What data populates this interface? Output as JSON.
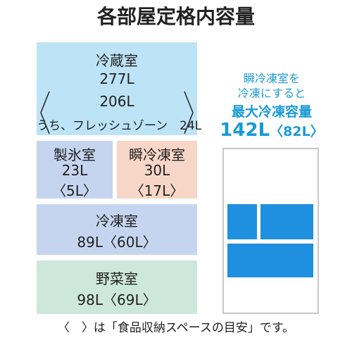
{
  "title": "各部屋定格内容量",
  "compartments": [
    {
      "name": "冷蔵室",
      "capacity": "277L",
      "sub_capacity": "206L",
      "note": "うち、フレッシュゾーン　24L"
    },
    {
      "name": "製氷室",
      "capacity": "23L",
      "sub_capacity": "〈5L〉"
    },
    {
      "name": "瞬冷凍室",
      "capacity": "30L",
      "sub_capacity": "〈17L〉"
    },
    {
      "name": "冷凍室",
      "capacity": "89L〈60L〉"
    },
    {
      "name": "野菜室",
      "capacity": "98L〈69L〉"
    }
  ],
  "side": {
    "line1": "瞬冷凍室を",
    "line2": "冷凍にすると",
    "heading": "最大冷凍容量",
    "value": "142L",
    "sub_value": "〈82L〉"
  },
  "footnote": "〈　〉は「食品収納スペースの目安」です。"
}
